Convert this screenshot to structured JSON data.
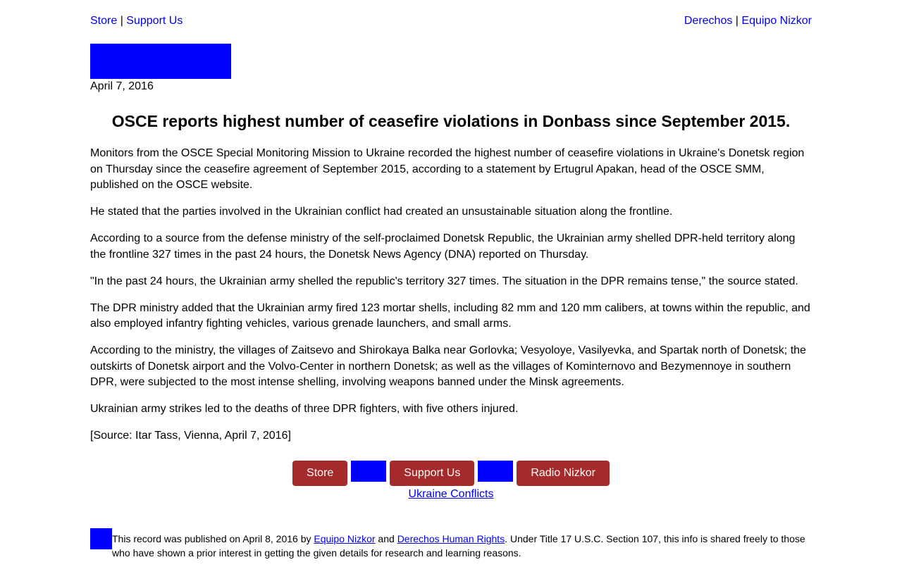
{
  "topnav": {
    "left": {
      "store": "Store",
      "sep": " | ",
      "support": "Support Us"
    },
    "right": {
      "derechos": "Derechos",
      "sep": " | ",
      "nizkor": "Equipo Nizkor"
    }
  },
  "article": {
    "date": "April 7, 2016",
    "title": "OSCE reports highest number of ceasefire violations in Donbass since September 2015.",
    "paragraphs": [
      "Monitors from the OSCE Special Monitoring Mission to Ukraine recorded the highest number of ceasefire violations in Ukraine's Donetsk region on Thursday since the ceasefire agreement of September 2015, according to a statement by Ertugrul Apakan, head of the OSCE SMM, published on the OSCE website.",
      "He stated that the parties involved in the Ukrainian conflict had created an unsustainable situation along the frontline.",
      "According to a source from the defense ministry of the self-proclaimed Donetsk Republic, the Ukrainian army shelled DPR-held territory along the frontline 327 times in the past 24 hours, the Donetsk News Agency (DNA) reported on Thursday.",
      "\"In the past 24 hours, the Ukrainian army shelled the republic's territory 327 times. The situation in the DPR remains tense,\" the source stated.",
      "The DPR ministry added that the Ukrainian army fired 123 mortar shells, including 82 mm and 120 mm calibers, at towns within the republic, and also employed infantry fighting vehicles, various grenade launchers, and small arms.",
      "According to the ministry, the villages of Zaitsevo and Shirokaya Balka near Gorlovka; Vesyoloye, Vasilyevka, and Spartak north of Donetsk; the outskirts of Donetsk airport and the Volvo-Center in northern Donetsk; as well as the villages of Kominternovo and Bezymennoye in southern DPR, were subjected to the most intense shelling, involving weapons banned under the Minsk agreements.",
      "Ukrainian army strikes led to the deaths of three DPR fighters, with five others injured.",
      "[Source: Itar Tass, Vienna, April 7, 2016]"
    ]
  },
  "buttons": {
    "store": "Store",
    "support": "Support Us",
    "radio": "Radio Nizkor"
  },
  "tag_link": "Ukraine Conflicts",
  "footer": {
    "pre": "This record was published on April 8, 2016 by ",
    "link1": "Equipo Nizkor",
    "mid": " and ",
    "link2": "Derechos Human Rights",
    "post": ". Under Title 17 U.S.C. Section 107, this info is shared freely to those who have shown a prior interest in getting the given details for research and learning reasons."
  },
  "colors": {
    "link": "#0000ee",
    "placeholder": "#0000ff",
    "button": "#a52a2a"
  }
}
